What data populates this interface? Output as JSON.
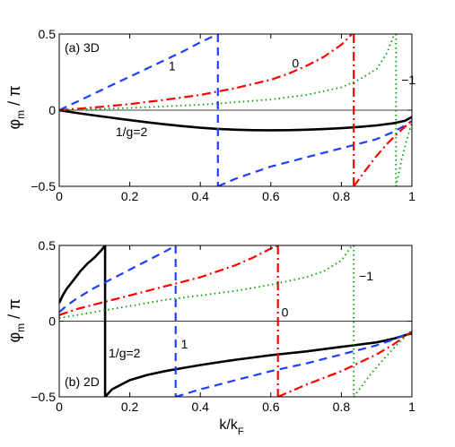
{
  "figure": {
    "shared_xlabel": "k/k",
    "shared_xlabel_sub": "F",
    "ylabel": "φ",
    "ylabel_sub": "m",
    "ylabel_suffix": " / π"
  },
  "styles": {
    "g2": {
      "color": "#000000",
      "dash": "none",
      "width": 2.6
    },
    "g1": {
      "color": "#1f3fff",
      "dash": "9 6",
      "width": 2.2
    },
    "g0": {
      "color": "#ff0000",
      "dash": "10 4 2 4",
      "width": 2.2
    },
    "gm1": {
      "color": "#00a000",
      "dash": "1.5 3.5",
      "width": 1.8
    }
  },
  "chart_data": [
    {
      "type": "line",
      "panel_label": "(a) 3D",
      "xlim": [
        0,
        1
      ],
      "ylim": [
        -0.5,
        0.5
      ],
      "xticks": [
        0,
        0.2,
        0.4,
        0.6,
        0.8,
        1
      ],
      "xtick_labels": [
        "0",
        "0.2",
        "0.4",
        "0.6",
        "0.8",
        "1"
      ],
      "yticks": [
        -0.5,
        0,
        0.5
      ],
      "ytick_labels": [
        "−0.5",
        "0",
        "0.5"
      ],
      "annotations": [
        {
          "text": "1",
          "x": 0.31,
          "y": 0.29
        },
        {
          "text": "0",
          "x": 0.66,
          "y": 0.31
        },
        {
          "text": "−1",
          "x": 0.97,
          "y": 0.2
        },
        {
          "text": "1/g=2",
          "x": 0.16,
          "y": -0.14
        }
      ],
      "series": [
        {
          "style": "g2",
          "segments": [
            {
              "x": [
                0,
                0.05,
                0.1,
                0.15,
                0.2,
                0.25,
                0.3,
                0.35,
                0.4,
                0.45,
                0.5,
                0.55,
                0.6,
                0.65,
                0.7,
                0.75,
                0.8,
                0.85,
                0.9,
                0.95,
                0.98,
                1.0
              ],
              "y": [
                0,
                -0.018,
                -0.035,
                -0.05,
                -0.065,
                -0.08,
                -0.093,
                -0.105,
                -0.115,
                -0.123,
                -0.128,
                -0.131,
                -0.132,
                -0.131,
                -0.128,
                -0.124,
                -0.118,
                -0.11,
                -0.1,
                -0.085,
                -0.07,
                -0.045
              ]
            }
          ]
        },
        {
          "style": "g1",
          "segments": [
            {
              "x": [
                0,
                0.05,
                0.1,
                0.15,
                0.2,
                0.25,
                0.3,
                0.35,
                0.4,
                0.45
              ],
              "y": [
                0,
                0.055,
                0.11,
                0.165,
                0.22,
                0.275,
                0.33,
                0.385,
                0.445,
                0.5
              ]
            },
            {
              "x": [
                0.45,
                0.45
              ],
              "y": [
                0.5,
                -0.5
              ]
            },
            {
              "x": [
                0.45,
                0.5,
                0.6,
                0.7,
                0.8,
                0.9,
                0.95,
                0.98,
                1.0
              ],
              "y": [
                -0.5,
                -0.45,
                -0.37,
                -0.31,
                -0.25,
                -0.19,
                -0.14,
                -0.1,
                -0.07
              ]
            }
          ]
        },
        {
          "style": "g0",
          "segments": [
            {
              "x": [
                0,
                0.1,
                0.2,
                0.3,
                0.4,
                0.5,
                0.6,
                0.65,
                0.7,
                0.75,
                0.8,
                0.83
              ],
              "y": [
                0,
                0.018,
                0.04,
                0.068,
                0.1,
                0.145,
                0.2,
                0.24,
                0.29,
                0.35,
                0.43,
                0.5
              ]
            },
            {
              "x": [
                0.835,
                0.835
              ],
              "y": [
                0.5,
                -0.5
              ]
            },
            {
              "x": [
                0.835,
                0.87,
                0.9,
                0.93,
                0.96,
                0.98,
                1.0
              ],
              "y": [
                -0.5,
                -0.39,
                -0.3,
                -0.22,
                -0.15,
                -0.11,
                -0.07
              ]
            }
          ]
        },
        {
          "style": "gm1",
          "segments": [
            {
              "x": [
                0,
                0.2,
                0.4,
                0.6,
                0.7,
                0.8,
                0.85,
                0.9,
                0.93,
                0.95
              ],
              "y": [
                0,
                0.015,
                0.035,
                0.07,
                0.1,
                0.15,
                0.2,
                0.27,
                0.38,
                0.5
              ]
            },
            {
              "x": [
                0.955,
                0.955
              ],
              "y": [
                0.5,
                -0.5
              ]
            },
            {
              "x": [
                0.955,
                0.97,
                0.985,
                1.0
              ],
              "y": [
                -0.5,
                -0.33,
                -0.2,
                -0.08
              ]
            }
          ]
        }
      ]
    },
    {
      "type": "line",
      "panel_label": "(b) 2D",
      "xlim": [
        0,
        1
      ],
      "ylim": [
        -0.5,
        0.5
      ],
      "xticks": [
        0,
        0.2,
        0.4,
        0.6,
        0.8,
        1
      ],
      "xtick_labels": [
        "0",
        "0.2",
        "0.4",
        "0.6",
        "0.8",
        "1"
      ],
      "yticks": [
        -0.5,
        0,
        0.5
      ],
      "ytick_labels": [
        "−0.5",
        "0",
        "0.5"
      ],
      "annotations": [
        {
          "text": "1/g=2",
          "x": 0.14,
          "y": -0.21
        },
        {
          "text": "1",
          "x": 0.345,
          "y": -0.15
        },
        {
          "text": "0",
          "x": 0.63,
          "y": 0.06
        },
        {
          "text": "−1",
          "x": 0.85,
          "y": 0.3
        }
      ],
      "series": [
        {
          "style": "g2",
          "segments": [
            {
              "x": [
                0,
                0.01,
                0.02,
                0.04,
                0.06,
                0.08,
                0.1,
                0.12,
                0.13
              ],
              "y": [
                0.12,
                0.17,
                0.21,
                0.27,
                0.33,
                0.38,
                0.42,
                0.47,
                0.5
              ]
            },
            {
              "x": [
                0.13,
                0.13
              ],
              "y": [
                0.5,
                -0.5
              ]
            },
            {
              "x": [
                0.13,
                0.15,
                0.2,
                0.25,
                0.3,
                0.35,
                0.4,
                0.5,
                0.6,
                0.7,
                0.8,
                0.9,
                0.95,
                1.0
              ],
              "y": [
                -0.5,
                -0.45,
                -0.39,
                -0.355,
                -0.33,
                -0.31,
                -0.29,
                -0.255,
                -0.225,
                -0.2,
                -0.17,
                -0.14,
                -0.115,
                -0.08
              ]
            }
          ]
        },
        {
          "style": "g1",
          "segments": [
            {
              "x": [
                0,
                0.02,
                0.05,
                0.1,
                0.15,
                0.2,
                0.25,
                0.3,
                0.33
              ],
              "y": [
                0.06,
                0.1,
                0.15,
                0.22,
                0.28,
                0.34,
                0.4,
                0.46,
                0.5
              ]
            },
            {
              "x": [
                0.33,
                0.33
              ],
              "y": [
                0.5,
                -0.5
              ]
            },
            {
              "x": [
                0.33,
                0.4,
                0.5,
                0.6,
                0.7,
                0.8,
                0.9,
                0.95,
                1.0
              ],
              "y": [
                -0.5,
                -0.45,
                -0.39,
                -0.33,
                -0.28,
                -0.22,
                -0.16,
                -0.12,
                -0.07
              ]
            }
          ]
        },
        {
          "style": "g0",
          "segments": [
            {
              "x": [
                0,
                0.05,
                0.1,
                0.2,
                0.3,
                0.4,
                0.5,
                0.55,
                0.6,
                0.62
              ],
              "y": [
                0.04,
                0.08,
                0.11,
                0.17,
                0.23,
                0.29,
                0.37,
                0.42,
                0.48,
                0.5
              ]
            },
            {
              "x": [
                0.62,
                0.62
              ],
              "y": [
                0.5,
                -0.5
              ]
            },
            {
              "x": [
                0.62,
                0.7,
                0.8,
                0.9,
                0.95,
                1.0
              ],
              "y": [
                -0.5,
                -0.42,
                -0.33,
                -0.22,
                -0.15,
                -0.07
              ]
            }
          ]
        },
        {
          "style": "gm1",
          "segments": [
            {
              "x": [
                0,
                0.1,
                0.2,
                0.3,
                0.4,
                0.5,
                0.6,
                0.7,
                0.75,
                0.8,
                0.83
              ],
              "y": [
                0.02,
                0.06,
                0.1,
                0.14,
                0.17,
                0.2,
                0.24,
                0.29,
                0.33,
                0.4,
                0.5
              ]
            },
            {
              "x": [
                0.835,
                0.835
              ],
              "y": [
                0.5,
                -0.5
              ]
            },
            {
              "x": [
                0.835,
                0.88,
                0.92,
                0.96,
                1.0
              ],
              "y": [
                -0.5,
                -0.36,
                -0.25,
                -0.15,
                -0.06
              ]
            }
          ]
        }
      ]
    }
  ]
}
